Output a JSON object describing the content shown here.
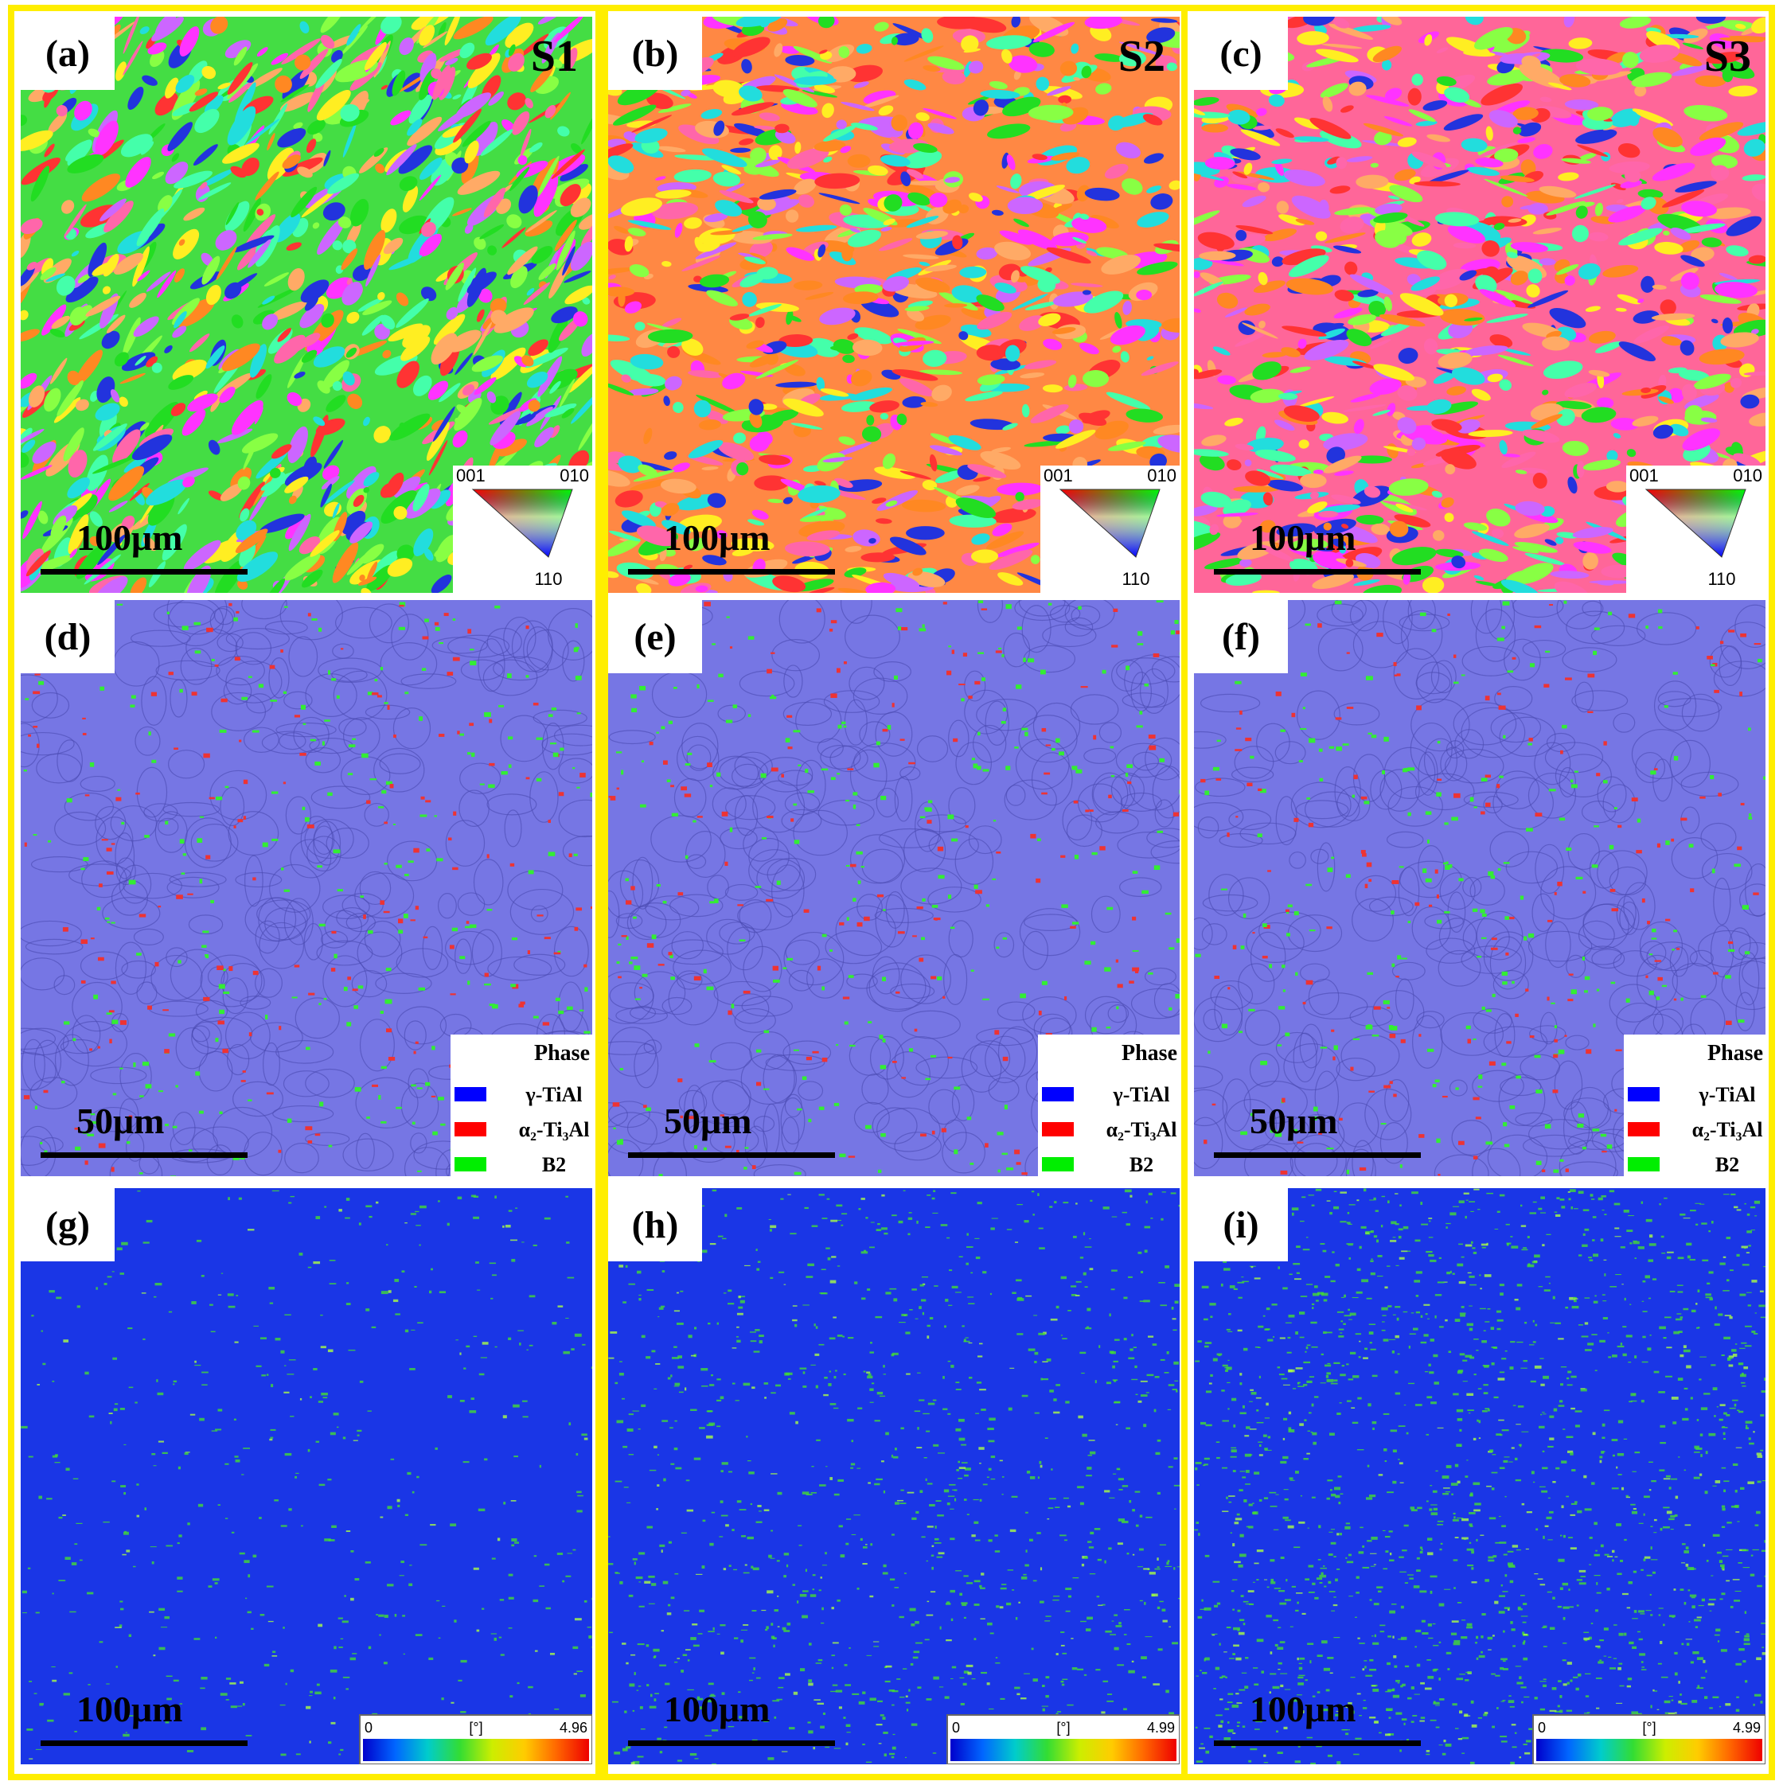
{
  "panels": [
    {
      "label": "(a)",
      "sample": "S1",
      "scale_bar": "100μm",
      "ipf": [
        "001",
        "010",
        "110"
      ]
    },
    {
      "label": "(b)",
      "sample": "S2",
      "scale_bar": "100μm",
      "ipf": [
        "001",
        "010",
        "110"
      ]
    },
    {
      "label": "(c)",
      "sample": "S3",
      "scale_bar": "100μm",
      "ipf": [
        "001",
        "010",
        "110"
      ]
    },
    {
      "label": "(d)",
      "scale_bar": "50μm",
      "phase": {
        "title": "Phase",
        "items": [
          "γ-TiAl",
          "α₂-Ti₃Al",
          "B2"
        ]
      }
    },
    {
      "label": "(e)",
      "scale_bar": "50μm",
      "phase": {
        "title": "Phase",
        "items": [
          "γ-TiAl",
          "α₂-Ti₃Al",
          "B2"
        ]
      }
    },
    {
      "label": "(f)",
      "scale_bar": "50μm",
      "phase": {
        "title": "Phase",
        "items": [
          "γ-TiAl",
          "α₂-Ti₃Al",
          "B2"
        ]
      }
    },
    {
      "label": "(g)",
      "scale_bar": "100μm",
      "colorbar": [
        "0",
        "[°]",
        "4.96"
      ]
    },
    {
      "label": "(h)",
      "scale_bar": "100μm",
      "colorbar": [
        "0",
        "[°]",
        "4.99"
      ]
    },
    {
      "label": "(i)",
      "scale_bar": "100μm",
      "colorbar": [
        "0",
        "[°]",
        "4.99"
      ]
    }
  ]
}
